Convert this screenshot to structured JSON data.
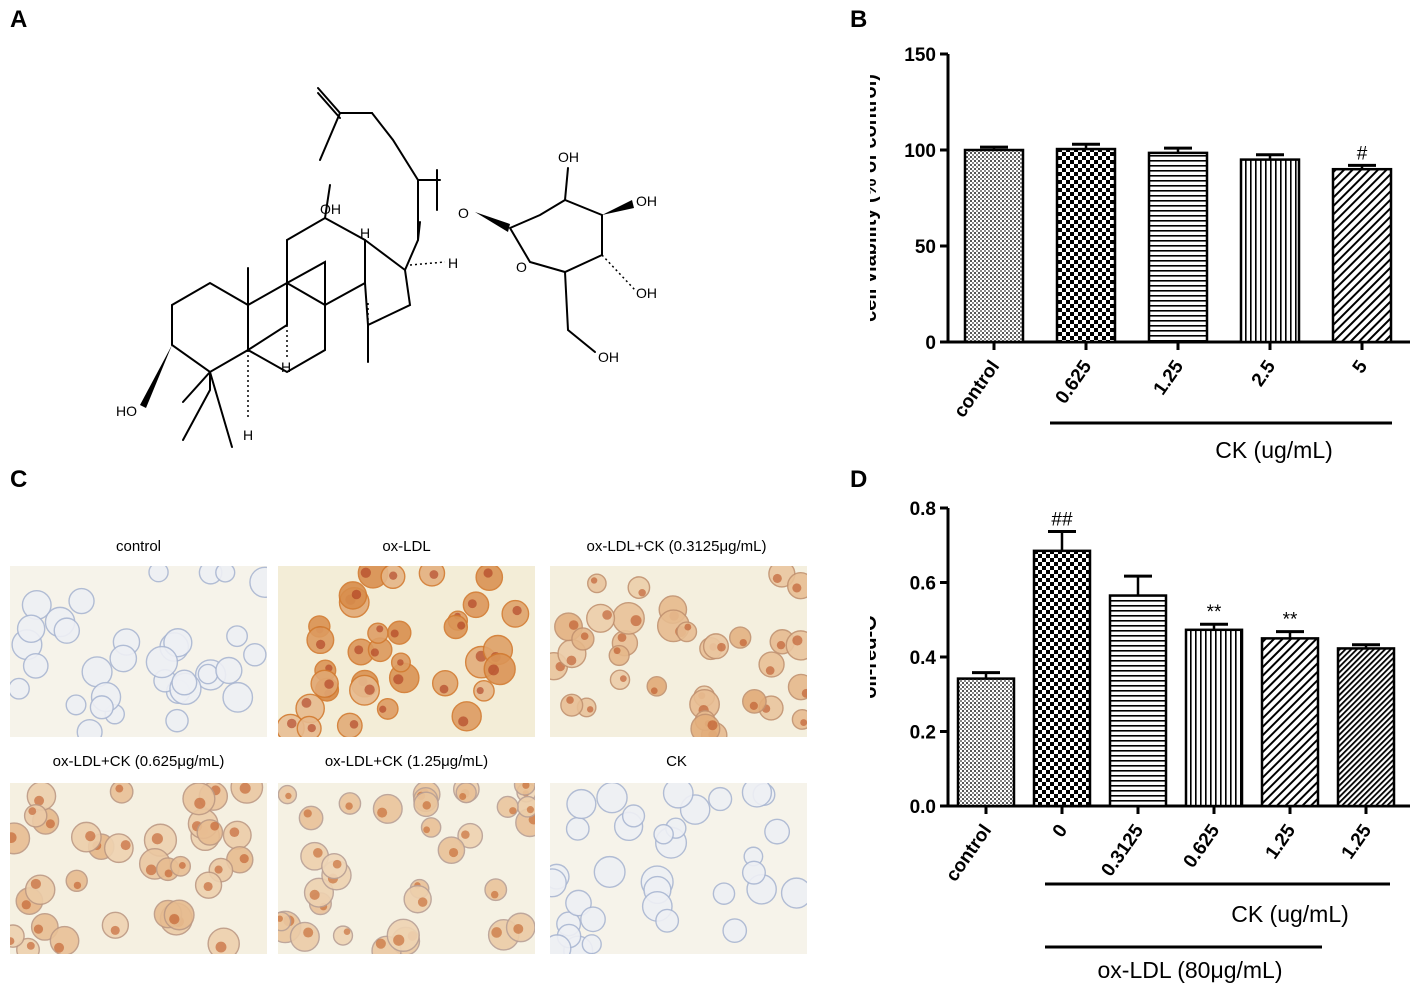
{
  "panels": {
    "a": "A",
    "b": "B",
    "c": "C",
    "d": "D"
  },
  "structure": {
    "labels": {
      "oh_top": "OH",
      "oh_right1": "OH",
      "oh_right2": "OH",
      "oh_bottom": "OH",
      "oh12": "OH",
      "ho3": "HO",
      "o_ring": "O",
      "o_link": "O",
      "h17": "H",
      "h13": "H",
      "h9": "H",
      "h5": "H"
    }
  },
  "micrographs": {
    "captions": [
      "control",
      "ox-LDL",
      "ox-LDL+CK (0.3125μg/mL)",
      "ox-LDL+CK (0.625μg/mL)",
      "ox-LDL+CK (1.25μg/mL)",
      "CK"
    ],
    "stain_level": [
      0.02,
      0.9,
      0.55,
      0.45,
      0.35,
      0.02
    ],
    "colors": {
      "background": "#f6f3ea",
      "unstained": "#a9b8d6",
      "stained": "#d2792e"
    }
  },
  "chart_data": [
    {
      "type": "bar",
      "panel": "B",
      "categories": [
        "control",
        "0.625",
        "1.25",
        "2.5",
        "5"
      ],
      "values": [
        100,
        100.5,
        98.5,
        95,
        90
      ],
      "errors": [
        1.5,
        2.5,
        2.5,
        2.5,
        2
      ],
      "annotations": [
        "",
        "",
        "",
        "",
        "#"
      ],
      "patterns": [
        "crosshatch",
        "checker",
        "hlines",
        "vlines",
        "diag"
      ],
      "ylabel": "cell viability (% of control)",
      "yticks": [
        "0",
        "50",
        "100",
        "150"
      ],
      "ylim": [
        0,
        150
      ],
      "group_label": "CK (ug/mL)",
      "grid": false
    },
    {
      "type": "bar",
      "panel": "D",
      "categories": [
        "control",
        "0",
        "0.3125",
        "0.625",
        "1.25",
        "1.25"
      ],
      "values": [
        0.342,
        0.685,
        0.565,
        0.473,
        0.45,
        0.423
      ],
      "errors": [
        0.016,
        0.052,
        0.052,
        0.015,
        0.018,
        0.01
      ],
      "annotations": [
        "",
        "##",
        "",
        "**",
        "**",
        ""
      ],
      "patterns": [
        "crosshatch",
        "checker",
        "hlines",
        "vlines",
        "diag",
        "diag2"
      ],
      "ylabel": "oil-red-O",
      "yticks": [
        "0.0",
        "0.2",
        "0.4",
        "0.6",
        "0.8"
      ],
      "ylim": [
        0,
        0.8
      ],
      "group_label": "CK (ug/mL)",
      "group_label2": "ox-LDL (80μg/mL)",
      "grid": false
    }
  ]
}
